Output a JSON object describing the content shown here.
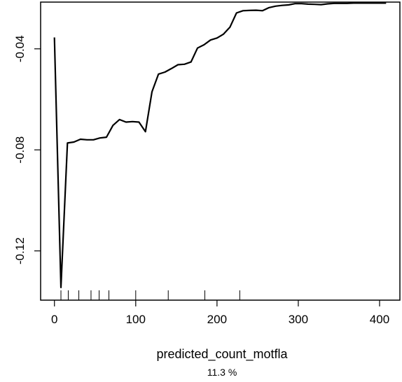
{
  "chart_data": {
    "type": "line",
    "title": "",
    "xlabel": "predicted_count_motfla",
    "subtitle": "11.3 %",
    "ylabel": "",
    "xlim": [
      -17,
      425
    ],
    "ylim": [
      -0.1395,
      -0.0215
    ],
    "x_ticks": [
      0,
      100,
      200,
      300,
      400
    ],
    "x_tick_labels": [
      "0",
      "100",
      "200",
      "300",
      "400"
    ],
    "y_ticks": [
      -0.04,
      -0.08,
      -0.12
    ],
    "y_tick_labels": [
      "-0.04",
      "-0.08",
      "-0.12"
    ],
    "grid": false,
    "legend": "none",
    "line_color": "#000000",
    "series": [
      {
        "x": [
          0,
          8,
          16,
          24,
          32,
          40,
          48,
          56,
          64,
          72,
          80,
          88,
          96,
          104,
          112,
          120,
          128,
          136,
          144,
          152,
          160,
          168,
          176,
          184,
          192,
          200,
          208,
          216,
          224,
          232,
          240,
          248,
          256,
          264,
          272,
          280,
          288,
          296,
          304,
          312,
          320,
          328,
          336,
          344,
          352,
          360,
          368,
          376,
          384,
          392,
          400,
          408
        ],
        "y": [
          -0.0355,
          -0.1345,
          -0.0773,
          -0.0769,
          -0.0758,
          -0.076,
          -0.076,
          -0.0753,
          -0.075,
          -0.0703,
          -0.068,
          -0.069,
          -0.0688,
          -0.069,
          -0.0728,
          -0.057,
          -0.05,
          -0.0492,
          -0.0478,
          -0.0463,
          -0.0461,
          -0.0452,
          -0.0397,
          -0.0384,
          -0.0365,
          -0.0357,
          -0.0342,
          -0.0314,
          -0.0258,
          -0.0249,
          -0.0248,
          -0.0247,
          -0.0249,
          -0.0237,
          -0.0231,
          -0.0228,
          -0.0226,
          -0.0221,
          -0.0221,
          -0.0223,
          -0.0224,
          -0.0225,
          -0.0222,
          -0.022,
          -0.022,
          -0.022,
          -0.0219,
          -0.0219,
          -0.0219,
          -0.0219,
          -0.0219,
          -0.0219
        ]
      }
    ],
    "rug": [
      8,
      17,
      30,
      45,
      55,
      67,
      100,
      140,
      185,
      228
    ]
  }
}
